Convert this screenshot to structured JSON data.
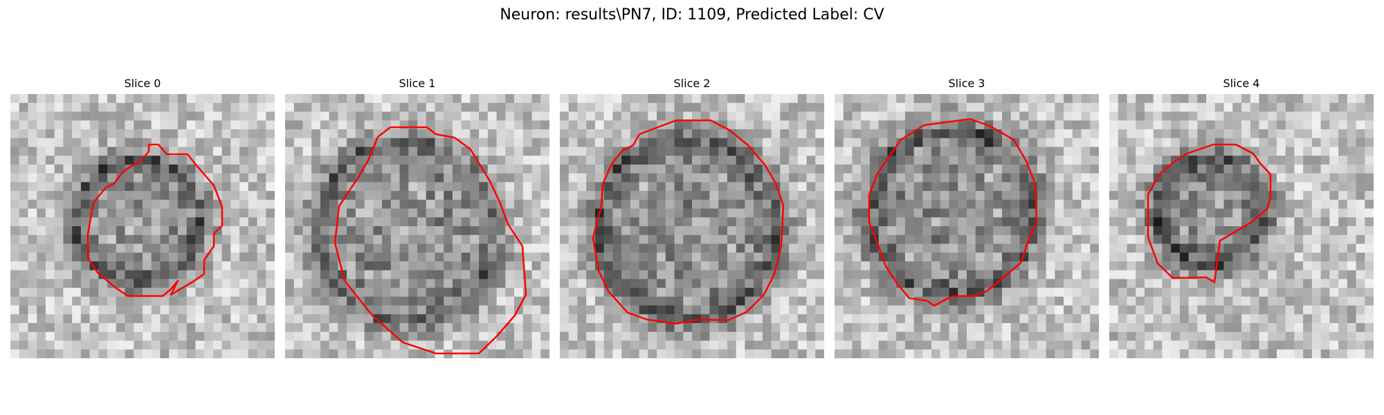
{
  "figure": {
    "title": "Neuron: results\\PN7, ID: 1109, Predicted Label: CV",
    "contour_color": "#ff0000",
    "colormap": "grayscale",
    "panels": [
      {
        "title": "Slice 0"
      },
      {
        "title": "Slice 1"
      },
      {
        "title": "Slice 2"
      },
      {
        "title": "Slice 3"
      },
      {
        "title": "Slice 4"
      }
    ]
  }
}
